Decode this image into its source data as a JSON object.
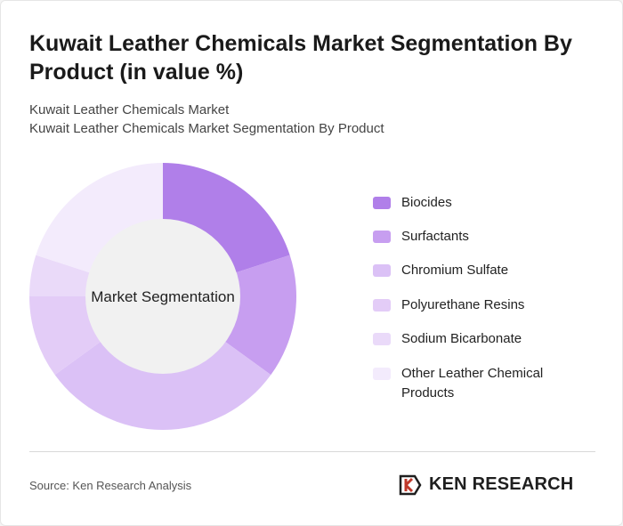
{
  "title": "Kuwait Leather Chemicals Market Segmentation By Product (in value %)",
  "subtitle_lines": [
    "Kuwait Leather Chemicals Market",
    "Kuwait Leather Chemicals Market Segmentation By Product"
  ],
  "source": "Source: Ken Research Analysis",
  "logo": {
    "text": "KEN RESEARCH"
  },
  "chart_data": {
    "type": "pie",
    "style": "donut",
    "center_label": "Market Segmentation",
    "legend_position": "right",
    "categories": [
      "Biocides",
      "Surfactants",
      "Chromium Sulfate",
      "Polyurethane Resins",
      "Sodium Bicarbonate",
      "Other Leather Chemical Products"
    ],
    "values": [
      20,
      15,
      30,
      10,
      5,
      20
    ],
    "colors": [
      "#b07fe9",
      "#c79ef0",
      "#dbc1f6",
      "#e3ccf7",
      "#eadaf9",
      "#f3ebfc"
    ]
  }
}
